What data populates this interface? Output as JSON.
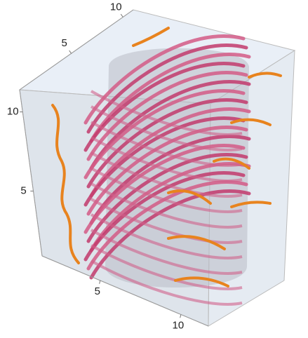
{
  "chart_data": {
    "type": "curve3d",
    "xlim": [
      1.4,
      11.7
    ],
    "xticks": [
      5,
      10
    ],
    "ylim": [
      0,
      11
    ],
    "yticks": [
      5,
      10
    ],
    "zlim": [
      0.9,
      11.4
    ],
    "zticks": [
      5,
      10
    ]
  }
}
